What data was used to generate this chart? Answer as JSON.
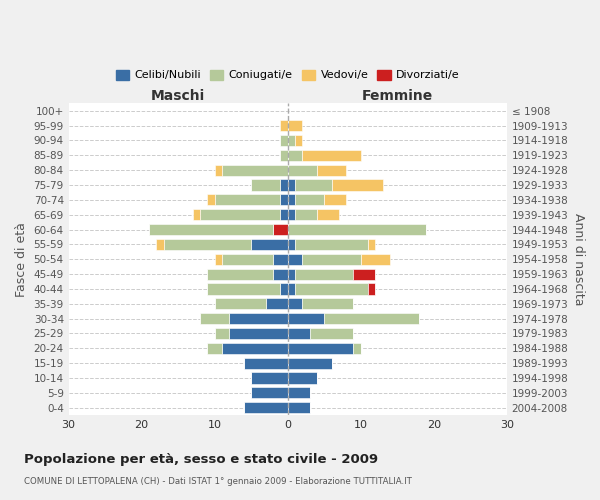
{
  "age_groups": [
    "100+",
    "95-99",
    "90-94",
    "85-89",
    "80-84",
    "75-79",
    "70-74",
    "65-69",
    "60-64",
    "55-59",
    "50-54",
    "45-49",
    "40-44",
    "35-39",
    "30-34",
    "25-29",
    "20-24",
    "15-19",
    "10-14",
    "5-9",
    "0-4"
  ],
  "birth_years": [
    "≤ 1908",
    "1909-1913",
    "1914-1918",
    "1919-1923",
    "1924-1928",
    "1929-1933",
    "1934-1938",
    "1939-1943",
    "1944-1948",
    "1949-1953",
    "1954-1958",
    "1959-1963",
    "1964-1968",
    "1969-1973",
    "1974-1978",
    "1979-1983",
    "1984-1988",
    "1989-1993",
    "1994-1998",
    "1999-2003",
    "2004-2008"
  ],
  "male": {
    "celibi": [
      0,
      0,
      0,
      0,
      0,
      1,
      1,
      1,
      0,
      5,
      2,
      2,
      1,
      3,
      8,
      8,
      9,
      6,
      5,
      5,
      6
    ],
    "coniugati": [
      0,
      0,
      1,
      1,
      9,
      4,
      9,
      11,
      17,
      12,
      7,
      9,
      10,
      7,
      4,
      2,
      2,
      0,
      0,
      0,
      0
    ],
    "vedovi": [
      0,
      1,
      0,
      0,
      1,
      0,
      1,
      1,
      0,
      1,
      1,
      0,
      0,
      0,
      0,
      0,
      0,
      0,
      0,
      0,
      0
    ],
    "divorziati": [
      0,
      0,
      0,
      0,
      0,
      0,
      0,
      0,
      2,
      0,
      0,
      0,
      0,
      0,
      0,
      0,
      0,
      0,
      0,
      0,
      0
    ]
  },
  "female": {
    "nubili": [
      0,
      0,
      0,
      0,
      0,
      1,
      1,
      1,
      0,
      1,
      2,
      1,
      1,
      2,
      5,
      3,
      9,
      6,
      4,
      3,
      3
    ],
    "coniugate": [
      0,
      0,
      1,
      2,
      4,
      5,
      4,
      3,
      19,
      10,
      8,
      8,
      10,
      7,
      13,
      6,
      1,
      0,
      0,
      0,
      0
    ],
    "vedove": [
      0,
      2,
      1,
      8,
      4,
      7,
      3,
      3,
      0,
      1,
      4,
      0,
      0,
      0,
      0,
      0,
      0,
      0,
      0,
      0,
      0
    ],
    "divorziate": [
      0,
      0,
      0,
      0,
      0,
      0,
      0,
      0,
      0,
      0,
      0,
      3,
      1,
      0,
      0,
      0,
      0,
      0,
      0,
      0,
      0
    ]
  },
  "colors": {
    "celibi": "#3a6ea5",
    "coniugati": "#b5c99a",
    "vedovi": "#f5c464",
    "divorziati": "#cc1f1f"
  },
  "xlim": 30,
  "title": "Popolazione per età, sesso e stato civile - 2009",
  "subtitle": "COMUNE DI LETTOPALENA (CH) - Dati ISTAT 1° gennaio 2009 - Elaborazione TUTTITALIA.IT",
  "ylabel_left": "Fasce di età",
  "ylabel_right": "Anni di nascita",
  "xlabel_left": "Maschi",
  "xlabel_right": "Femmine",
  "bg_color": "#f0f0f0",
  "plot_bg": "#ffffff"
}
